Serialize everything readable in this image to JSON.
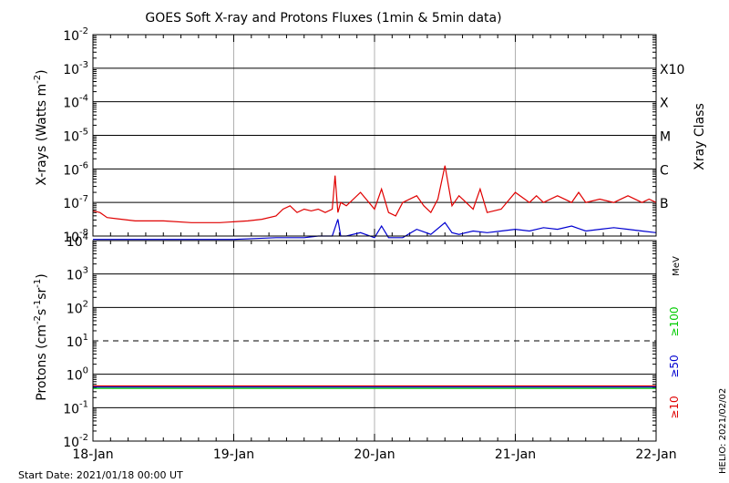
{
  "chart_data": [
    {
      "type": "line",
      "title": "GOES Soft X-ray and Protons Fluxes   (1min & 5min data)",
      "ylabel": "X-rays (Watts m",
      "ylabel_sup": "-2",
      "ylabel_tail": ")",
      "right_label": "Xray Class",
      "x_range": [
        "2021-01-18",
        "2021-01-22"
      ],
      "y_log_range": [
        -8,
        -2
      ],
      "y_ticks": [
        {
          "exp": -2,
          "base": "10",
          "sup": "-2"
        },
        {
          "exp": -3,
          "base": "10",
          "sup": "-3"
        },
        {
          "exp": -4,
          "base": "10",
          "sup": "-4"
        },
        {
          "exp": -5,
          "base": "10",
          "sup": "-5"
        },
        {
          "exp": -6,
          "base": "10",
          "sup": "-6"
        },
        {
          "exp": -7,
          "base": "10",
          "sup": "-7"
        },
        {
          "exp": -8,
          "base": "10",
          "sup": "-8"
        }
      ],
      "xray_classes": [
        {
          "label": "X10",
          "exp": -3
        },
        {
          "label": "X",
          "exp": -4
        },
        {
          "label": "M",
          "exp": -5
        },
        {
          "label": "C",
          "exp": -6
        },
        {
          "label": "B",
          "exp": -7
        }
      ],
      "grid": "horizontal lines at decades; vertical lines at day boundaries",
      "series": [
        {
          "color": "#e00000",
          "x_days": [
            0,
            0.05,
            0.1,
            0.3,
            0.5,
            0.7,
            0.9,
            1.1,
            1.2,
            1.3,
            1.35,
            1.4,
            1.45,
            1.5,
            1.55,
            1.6,
            1.65,
            1.7,
            1.72,
            1.74,
            1.76,
            1.8,
            1.9,
            2.0,
            2.05,
            2.1,
            2.15,
            2.2,
            2.3,
            2.35,
            2.4,
            2.45,
            2.5,
            2.55,
            2.6,
            2.7,
            2.75,
            2.8,
            2.9,
            3.0,
            3.1,
            3.15,
            3.2,
            3.3,
            3.4,
            3.45,
            3.5,
            3.6,
            3.7,
            3.8,
            3.9,
            3.95,
            4.0
          ],
          "log10_flux": [
            -7.25,
            -7.3,
            -7.45,
            -7.55,
            -7.55,
            -7.6,
            -7.6,
            -7.55,
            -7.5,
            -7.4,
            -7.2,
            -7.1,
            -7.3,
            -7.2,
            -7.25,
            -7.2,
            -7.3,
            -7.2,
            -6.2,
            -7.3,
            -7.0,
            -7.1,
            -6.7,
            -7.2,
            -6.6,
            -7.3,
            -7.4,
            -7.0,
            -6.8,
            -7.1,
            -7.3,
            -6.9,
            -5.9,
            -7.1,
            -6.8,
            -7.2,
            -6.6,
            -7.3,
            -7.2,
            -6.7,
            -7.0,
            -6.8,
            -7.0,
            -6.8,
            -7.0,
            -6.7,
            -7.0,
            -6.9,
            -7.0,
            -6.8,
            -7.0,
            -6.9,
            -7.0
          ]
        },
        {
          "color": "#0000d0",
          "x_days": [
            0,
            0.5,
            1.0,
            1.3,
            1.4,
            1.5,
            1.6,
            1.7,
            1.74,
            1.76,
            1.8,
            1.9,
            2.0,
            2.05,
            2.1,
            2.2,
            2.3,
            2.4,
            2.5,
            2.55,
            2.6,
            2.7,
            2.8,
            2.9,
            3.0,
            3.1,
            3.2,
            3.3,
            3.4,
            3.5,
            3.6,
            3.7,
            3.8,
            3.9,
            4.0
          ],
          "log10_flux": [
            -8.1,
            -8.1,
            -8.1,
            -8.05,
            -8.05,
            -8.05,
            -8.0,
            -8.0,
            -7.5,
            -8.0,
            -8.0,
            -7.9,
            -8.05,
            -7.7,
            -8.05,
            -8.05,
            -7.8,
            -7.95,
            -7.6,
            -7.9,
            -7.95,
            -7.85,
            -7.9,
            -7.85,
            -7.8,
            -7.85,
            -7.75,
            -7.8,
            -7.7,
            -7.85,
            -7.8,
            -7.75,
            -7.8,
            -7.85,
            -7.9
          ]
        }
      ]
    },
    {
      "type": "line",
      "ylabel": "Protons (cm",
      "ylabel_sup1": "-2",
      "ylabel_mid": "s",
      "ylabel_sup2": "-1",
      "ylabel_mid2": "sr",
      "ylabel_sup3": "-1",
      "ylabel_tail": ")",
      "x_range": [
        "2021-01-18",
        "2021-01-22"
      ],
      "y_log_range": [
        -2,
        4
      ],
      "y_ticks": [
        {
          "exp": 4,
          "base": "10",
          "sup": "4"
        },
        {
          "exp": 3,
          "base": "10",
          "sup": "3"
        },
        {
          "exp": 2,
          "base": "10",
          "sup": "2"
        },
        {
          "exp": 1,
          "base": "10",
          "sup": "1"
        },
        {
          "exp": 0,
          "base": "10",
          "sup": "0"
        },
        {
          "exp": -1,
          "base": "10",
          "sup": "-1"
        },
        {
          "exp": -2,
          "base": "10",
          "sup": "-2"
        }
      ],
      "threshold_line": {
        "exp": 1,
        "style": "dashed"
      },
      "unit": "MeV",
      "legend": [
        {
          "label": "≥100",
          "color": "#00cc00"
        },
        {
          "label": "≥50",
          "color": "#0000d0"
        },
        {
          "label": "≥10",
          "color": "#e00000"
        }
      ],
      "series": [
        {
          "name": "≥10",
          "color": "#e00000",
          "x_days": [
            0,
            4
          ],
          "log10_flux": [
            -0.35,
            -0.35
          ]
        },
        {
          "name": "≥50",
          "color": "#0000d0",
          "x_days": [
            0,
            4
          ],
          "log10_flux": [
            -0.38,
            -0.38
          ]
        },
        {
          "name": "≥100",
          "color": "#00cc00",
          "x_days": [
            0,
            4
          ],
          "log10_flux": [
            -0.42,
            -0.42
          ]
        }
      ]
    }
  ],
  "x_tick_labels": [
    "18-Jan",
    "19-Jan",
    "20-Jan",
    "21-Jan",
    "22-Jan"
  ],
  "start_date": "Start Date: 2021/01/18 00:00 UT",
  "stamp": "HELIO: 2021/02/02"
}
